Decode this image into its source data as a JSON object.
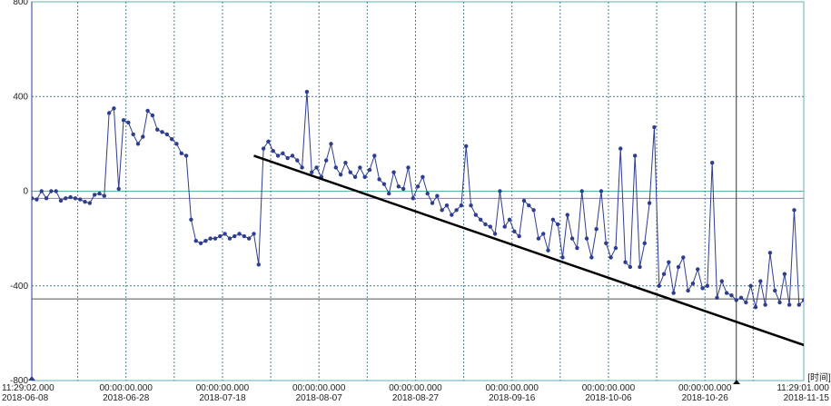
{
  "chart_data": {
    "type": "line",
    "x_axis_label": "[时间]",
    "xlim": [
      "2018-06-08 11:29:02.000",
      "2018-11-15 11:29:01.000"
    ],
    "xticks": [
      {
        "value": "2018-06-08 11:29:02.000",
        "label": [
          "11:29:02.000",
          "2018-06-08"
        ]
      },
      {
        "value": "2018-06-18 00:00:00.000"
      },
      {
        "value": "2018-06-28 00:00:00.000",
        "label": [
          "00:00:00.000",
          "2018-06-28"
        ]
      },
      {
        "value": "2018-07-08 00:00:00.000"
      },
      {
        "value": "2018-07-18 00:00:00.000",
        "label": [
          "00:00:00.000",
          "2018-07-18"
        ]
      },
      {
        "value": "2018-07-28 00:00:00.000"
      },
      {
        "value": "2018-08-07 00:00:00.000",
        "label": [
          "00:00:00.000",
          "2018-08-07"
        ]
      },
      {
        "value": "2018-08-17 00:00:00.000"
      },
      {
        "value": "2018-08-27 00:00:00.000",
        "label": [
          "00:00:00.000",
          "2018-08-27"
        ]
      },
      {
        "value": "2018-09-06 00:00:00.000"
      },
      {
        "value": "2018-09-16 00:00:00.000",
        "label": [
          "00:00:00.000",
          "2018-09-16"
        ]
      },
      {
        "value": "2018-09-26 00:00:00.000"
      },
      {
        "value": "2018-10-06 00:00:00.000",
        "label": [
          "00:00:00.000",
          "2018-10-06"
        ]
      },
      {
        "value": "2018-10-16 00:00:00.000"
      },
      {
        "value": "2018-10-26 00:00:00.000",
        "label": [
          "00:00:00.000",
          "2018-10-26"
        ]
      },
      {
        "value": "2018-11-05 00:00:00.000"
      },
      {
        "value": "2018-11-15 11:29:01.000",
        "label": [
          "11:29:01.000",
          "2018-11-15"
        ]
      }
    ],
    "ylim": [
      -800,
      800
    ],
    "yticks": [
      -800,
      -400,
      0,
      400,
      800
    ],
    "grid": true,
    "x": [
      "2018-06-08",
      "2018-06-09",
      "2018-06-10",
      "2018-06-11",
      "2018-06-12",
      "2018-06-13",
      "2018-06-14",
      "2018-06-15",
      "2018-06-16",
      "2018-06-17",
      "2018-06-18",
      "2018-06-19",
      "2018-06-20",
      "2018-06-21",
      "2018-06-22",
      "2018-06-23",
      "2018-06-24",
      "2018-06-25",
      "2018-06-26",
      "2018-06-27",
      "2018-06-28",
      "2018-06-29",
      "2018-06-30",
      "2018-07-01",
      "2018-07-02",
      "2018-07-03",
      "2018-07-04",
      "2018-07-05",
      "2018-07-06",
      "2018-07-07",
      "2018-07-08",
      "2018-07-09",
      "2018-07-10",
      "2018-07-11",
      "2018-07-12",
      "2018-07-13",
      "2018-07-14",
      "2018-07-15",
      "2018-07-16",
      "2018-07-17",
      "2018-07-18",
      "2018-07-19",
      "2018-07-20",
      "2018-07-21",
      "2018-07-22",
      "2018-07-23",
      "2018-07-24",
      "2018-07-25",
      "2018-07-26",
      "2018-07-27",
      "2018-07-28",
      "2018-07-29",
      "2018-07-30",
      "2018-07-31",
      "2018-08-01",
      "2018-08-02",
      "2018-08-03",
      "2018-08-04",
      "2018-08-05",
      "2018-08-06",
      "2018-08-07",
      "2018-08-08",
      "2018-08-09",
      "2018-08-10",
      "2018-08-11",
      "2018-08-12",
      "2018-08-13",
      "2018-08-14",
      "2018-08-15",
      "2018-08-16",
      "2018-08-17",
      "2018-08-18",
      "2018-08-19",
      "2018-08-20",
      "2018-08-21",
      "2018-08-22",
      "2018-08-23",
      "2018-08-24",
      "2018-08-25",
      "2018-08-26",
      "2018-08-27",
      "2018-08-28",
      "2018-08-29",
      "2018-08-30",
      "2018-08-31",
      "2018-09-01",
      "2018-09-02",
      "2018-09-03",
      "2018-09-04",
      "2018-09-05",
      "2018-09-06",
      "2018-09-07",
      "2018-09-08",
      "2018-09-09",
      "2018-09-10",
      "2018-09-11",
      "2018-09-12",
      "2018-09-13",
      "2018-09-14",
      "2018-09-15",
      "2018-09-16",
      "2018-09-17",
      "2018-09-18",
      "2018-09-19",
      "2018-09-20",
      "2018-09-21",
      "2018-09-22",
      "2018-09-23",
      "2018-09-24",
      "2018-09-25",
      "2018-09-26",
      "2018-09-27",
      "2018-09-28",
      "2018-09-29",
      "2018-09-30",
      "2018-10-01",
      "2018-10-02",
      "2018-10-03",
      "2018-10-04",
      "2018-10-05",
      "2018-10-06",
      "2018-10-07",
      "2018-10-08",
      "2018-10-09",
      "2018-10-10",
      "2018-10-11",
      "2018-10-12",
      "2018-10-13",
      "2018-10-14",
      "2018-10-15",
      "2018-10-16",
      "2018-10-17",
      "2018-10-18",
      "2018-10-19",
      "2018-10-20",
      "2018-10-21",
      "2018-10-22",
      "2018-10-23",
      "2018-10-24",
      "2018-10-25",
      "2018-10-26",
      "2018-10-27",
      "2018-10-28",
      "2018-10-29",
      "2018-10-30",
      "2018-10-31",
      "2018-11-01",
      "2018-11-02",
      "2018-11-03",
      "2018-11-04",
      "2018-11-05",
      "2018-11-06",
      "2018-11-07",
      "2018-11-08",
      "2018-11-09",
      "2018-11-10",
      "2018-11-11",
      "2018-11-12",
      "2018-11-13",
      "2018-11-14",
      "2018-11-15"
    ],
    "series": [
      {
        "color": "#2e3d8f",
        "values": [
          -30,
          -35,
          0,
          -30,
          0,
          0,
          -40,
          -30,
          -25,
          -30,
          -35,
          -45,
          -50,
          -15,
          -10,
          -20,
          330,
          350,
          10,
          300,
          290,
          240,
          200,
          230,
          340,
          320,
          260,
          250,
          240,
          220,
          200,
          160,
          150,
          -120,
          -210,
          -220,
          -210,
          -200,
          -200,
          -190,
          -180,
          -200,
          -190,
          -180,
          -190,
          -200,
          -180,
          -310,
          180,
          210,
          170,
          150,
          160,
          140,
          150,
          130,
          100,
          420,
          80,
          100,
          60,
          130,
          200,
          100,
          70,
          120,
          80,
          60,
          100,
          60,
          90,
          150,
          50,
          30,
          -10,
          80,
          20,
          10,
          100,
          -30,
          20,
          60,
          -10,
          -50,
          -20,
          -80,
          -60,
          -100,
          -80,
          -60,
          190,
          -60,
          -100,
          -120,
          -140,
          -150,
          -180,
          0,
          -150,
          -120,
          -170,
          -190,
          -40,
          -60,
          -80,
          -200,
          -180,
          -250,
          -120,
          -140,
          -280,
          -100,
          -200,
          -240,
          0,
          -200,
          -280,
          -160,
          0,
          -220,
          -280,
          -240,
          180,
          -300,
          -320,
          150,
          -320,
          -220,
          -50,
          270,
          -400,
          -350,
          -300,
          -430,
          -320,
          -280,
          -420,
          -390,
          -330,
          -410,
          -400,
          120,
          -450,
          -380,
          -430,
          -440,
          -460,
          -450,
          -470,
          -400,
          -490,
          -380,
          -480,
          -260,
          -420,
          -470,
          -350,
          -480,
          -80,
          -480,
          -460
        ]
      }
    ],
    "reference_lines": [
      {
        "orientation": "horizontal",
        "value": -30,
        "color": "#8a7fb8"
      },
      {
        "orientation": "horizontal",
        "value": -455,
        "color": "#555555"
      },
      {
        "orientation": "vertical",
        "value": "2018-11-01 12:00:00.000",
        "color": "#333333"
      }
    ],
    "trend_line": {
      "x": [
        "2018-07-24",
        "2018-11-15"
      ],
      "y": [
        150,
        -650
      ],
      "color": "#000000"
    }
  }
}
